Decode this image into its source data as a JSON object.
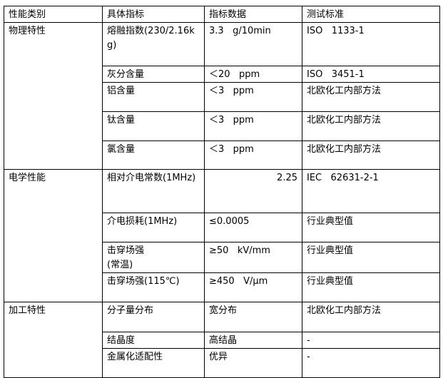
{
  "headers": [
    "性能类别",
    "具体指标",
    "指标数据",
    "测试标准"
  ],
  "groups": [
    {
      "category": "物理特性",
      "rows": [
        {
          "indicator": "熔融指数(230/2.16kg)",
          "value": "3.3   g/10min",
          "standard": "ISO   1133-1"
        },
        {
          "indicator": "灰分含量",
          "value": "＜20   ppm",
          "standard": "ISO   3451-1"
        },
        {
          "indicator": "铝含量",
          "value": "＜3   ppm",
          "standard": "北欧化工内部方法"
        },
        {
          "indicator": "钛含量",
          "value": "＜3   ppm",
          "standard": "北欧化工内部方法"
        },
        {
          "indicator": "氯含量",
          "value": "＜3   ppm",
          "standard": "北欧化工内部方法"
        }
      ]
    },
    {
      "category": "电学性能",
      "rows": [
        {
          "indicator": "相对介电常数(1MHz)",
          "value": "2.25",
          "standard": "IEC   62631-2-1"
        },
        {
          "indicator": "介电损耗(1MHz)",
          "value": "≤0.0005",
          "standard": "行业典型值"
        },
        {
          "indicator": "击穿场强\n(常温)",
          "value": "≥50   kV/mm",
          "standard": "行业典型值"
        },
        {
          "indicator": "击穿场强(115℃)",
          "value": "≥450   V/μm",
          "standard": "行业典型值"
        }
      ]
    },
    {
      "category": "加工特性",
      "rows": [
        {
          "indicator": "分子量分布",
          "value": "宽分布",
          "standard": "北欧化工内部方法"
        },
        {
          "indicator": "结晶度",
          "value": "高结晶",
          "standard": "-"
        },
        {
          "indicator": "金属化适配性",
          "value": "优异",
          "standard": "-"
        }
      ]
    }
  ]
}
